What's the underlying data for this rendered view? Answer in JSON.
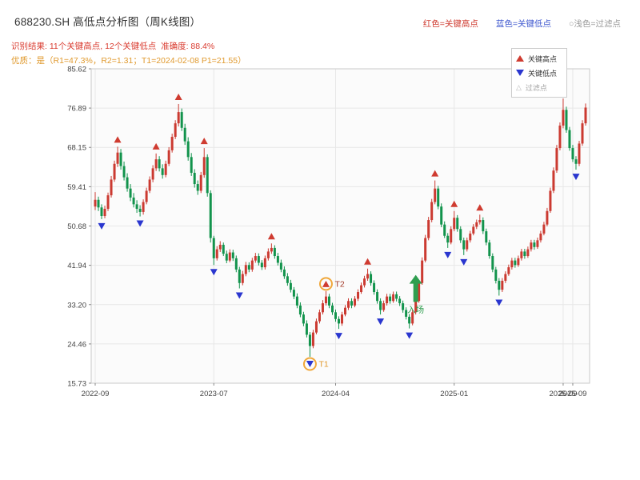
{
  "header": {
    "title": "688230.SH 高低点分析图（周K线图）",
    "legend_top": [
      {
        "label": "红色=关键高点",
        "color": "#cf3b30"
      },
      {
        "label": "蓝色=关键低点",
        "color": "#4059cf"
      },
      {
        "label": "○浅色=过滤点",
        "color": "#9a9a9a"
      }
    ],
    "result_line": "识别结果: 11个关键高点, 12个关键低点  准确度: 88.4%",
    "quality_line": "优质：是（R1=47.3%，R2=1.31；T1=2024-02-08 P1=21.55）"
  },
  "plot_legend": {
    "items": [
      {
        "marker": "triangle-up",
        "color": "#cf3b30",
        "label": "关键高点"
      },
      {
        "marker": "triangle-down",
        "color": "#2a36cf",
        "label": "关键低点"
      },
      {
        "marker": "triangle-outline",
        "color": "#b9b9b9",
        "label": "过滤点"
      }
    ]
  },
  "chart_data": {
    "type": "candlestick",
    "title": "688230.SH 高低点分析图（周K线图）",
    "ylim": [
      15.73,
      85.62
    ],
    "y_ticks": [
      85.62,
      76.89,
      68.15,
      59.41,
      50.68,
      41.94,
      33.2,
      24.46,
      15.73
    ],
    "x_ticks": [
      {
        "label": "2022-09",
        "index": 0
      },
      {
        "label": "2023-07",
        "index": 37
      },
      {
        "label": "2024-04",
        "index": 75
      },
      {
        "label": "2025-01",
        "index": 112
      },
      {
        "label": "2025-09",
        "index": 146
      },
      {
        "label": "2025-09",
        "index": 149
      }
    ],
    "up_color": "#cb3a31",
    "down_color": "#12934c",
    "key_high_color": "#cf3b30",
    "key_low_color": "#2a36cf",
    "grid": true,
    "candles": [
      [
        55.0,
        58.2,
        54.2,
        56.5
      ],
      [
        56.5,
        57.2,
        54.0,
        54.8
      ],
      [
        54.8,
        55.5,
        52.2,
        52.9
      ],
      [
        52.9,
        55.2,
        52.4,
        54.5
      ],
      [
        54.5,
        58.1,
        54.0,
        57.5
      ],
      [
        57.5,
        61.8,
        57.0,
        61.0
      ],
      [
        61.0,
        65.2,
        60.5,
        64.5
      ],
      [
        64.5,
        68.3,
        63.8,
        67.0
      ],
      [
        67.0,
        67.8,
        63.2,
        64.0
      ],
      [
        64.0,
        65.0,
        60.8,
        61.5
      ],
      [
        61.5,
        62.4,
        58.3,
        59.0
      ],
      [
        59.0,
        60.0,
        56.2,
        57.0
      ],
      [
        57.0,
        58.0,
        54.8,
        55.5
      ],
      [
        55.5,
        56.4,
        53.6,
        54.5
      ],
      [
        54.5,
        55.3,
        52.8,
        53.8
      ],
      [
        53.8,
        56.6,
        53.2,
        56.0
      ],
      [
        56.0,
        59.2,
        55.5,
        58.5
      ],
      [
        58.5,
        61.7,
        58.0,
        61.0
      ],
      [
        61.0,
        64.2,
        60.4,
        63.5
      ],
      [
        63.5,
        66.8,
        62.9,
        65.5
      ],
      [
        65.5,
        66.2,
        62.8,
        63.5
      ],
      [
        63.5,
        64.4,
        61.2,
        62.0
      ],
      [
        62.0,
        65.2,
        61.5,
        64.5
      ],
      [
        64.5,
        68.2,
        64.0,
        67.5
      ],
      [
        67.5,
        71.2,
        67.0,
        70.5
      ],
      [
        70.5,
        74.2,
        70.0,
        73.5
      ],
      [
        73.5,
        77.8,
        72.8,
        76.0
      ],
      [
        76.0,
        76.8,
        71.8,
        72.5
      ],
      [
        72.5,
        73.4,
        68.7,
        69.5
      ],
      [
        69.5,
        70.4,
        65.2,
        66.0
      ],
      [
        66.0,
        66.9,
        61.8,
        62.5
      ],
      [
        62.5,
        63.3,
        59.2,
        60.0
      ],
      [
        60.0,
        60.8,
        57.6,
        58.5
      ],
      [
        58.5,
        62.7,
        58.0,
        62.0
      ],
      [
        62.0,
        68.0,
        61.4,
        66.0
      ],
      [
        66.0,
        66.6,
        57.2,
        58.0
      ],
      [
        58.0,
        58.6,
        47.0,
        48.0
      ],
      [
        48.0,
        48.5,
        42.0,
        43.5
      ],
      [
        43.5,
        46.2,
        43.0,
        45.5
      ],
      [
        45.5,
        47.3,
        44.9,
        46.5
      ],
      [
        46.5,
        47.0,
        44.0,
        44.5
      ],
      [
        44.5,
        45.2,
        42.4,
        43.0
      ],
      [
        43.0,
        45.5,
        42.6,
        44.8
      ],
      [
        44.8,
        45.4,
        42.9,
        43.5
      ],
      [
        43.5,
        44.1,
        40.4,
        41.0
      ],
      [
        41.0,
        41.6,
        36.8,
        38.0
      ],
      [
        38.0,
        40.7,
        37.5,
        40.0
      ],
      [
        40.0,
        42.7,
        39.5,
        42.0
      ],
      [
        42.0,
        42.6,
        40.4,
        41.0
      ],
      [
        41.0,
        43.6,
        40.5,
        43.0
      ],
      [
        43.0,
        44.7,
        42.5,
        44.0
      ],
      [
        44.0,
        44.6,
        41.9,
        42.5
      ],
      [
        42.5,
        43.1,
        40.9,
        41.5
      ],
      [
        41.5,
        44.1,
        41.0,
        43.5
      ],
      [
        43.5,
        45.7,
        43.0,
        45.0
      ],
      [
        45.0,
        46.8,
        44.5,
        45.8
      ],
      [
        45.8,
        46.4,
        43.4,
        44.0
      ],
      [
        44.0,
        44.7,
        41.9,
        42.5
      ],
      [
        42.5,
        43.2,
        40.4,
        41.0
      ],
      [
        41.0,
        41.7,
        38.9,
        39.5
      ],
      [
        39.5,
        40.2,
        37.4,
        38.0
      ],
      [
        38.0,
        38.7,
        35.9,
        36.5
      ],
      [
        36.5,
        37.1,
        34.4,
        35.0
      ],
      [
        35.0,
        35.7,
        32.4,
        33.0
      ],
      [
        33.0,
        33.7,
        30.4,
        31.0
      ],
      [
        31.0,
        31.6,
        28.4,
        29.0
      ],
      [
        29.0,
        29.7,
        25.9,
        26.5
      ],
      [
        26.5,
        27.1,
        21.6,
        24.0
      ],
      [
        24.0,
        27.6,
        23.5,
        27.0
      ],
      [
        27.0,
        30.1,
        26.6,
        29.5
      ],
      [
        29.5,
        32.1,
        29.0,
        31.5
      ],
      [
        31.5,
        34.2,
        31.0,
        33.5
      ],
      [
        33.5,
        36.2,
        33.0,
        35.0
      ],
      [
        35.0,
        35.6,
        32.4,
        33.0
      ],
      [
        33.0,
        33.6,
        30.9,
        31.5
      ],
      [
        31.5,
        32.1,
        29.4,
        30.0
      ],
      [
        30.0,
        30.6,
        27.8,
        29.0
      ],
      [
        29.0,
        31.6,
        28.5,
        31.0
      ],
      [
        31.0,
        33.1,
        30.6,
        32.5
      ],
      [
        32.5,
        34.6,
        32.0,
        34.0
      ],
      [
        34.0,
        34.6,
        32.4,
        33.0
      ],
      [
        33.0,
        35.1,
        32.6,
        34.5
      ],
      [
        34.5,
        36.6,
        34.0,
        36.0
      ],
      [
        36.0,
        38.1,
        35.6,
        37.5
      ],
      [
        37.5,
        39.6,
        37.0,
        39.0
      ],
      [
        39.0,
        41.2,
        38.5,
        40.0
      ],
      [
        40.0,
        40.6,
        37.4,
        38.0
      ],
      [
        38.0,
        38.6,
        35.4,
        36.0
      ],
      [
        36.0,
        36.6,
        33.4,
        34.0
      ],
      [
        34.0,
        34.6,
        31.0,
        32.0
      ],
      [
        32.0,
        34.1,
        31.6,
        33.5
      ],
      [
        33.5,
        35.6,
        33.0,
        35.0
      ],
      [
        35.0,
        35.6,
        33.4,
        34.0
      ],
      [
        34.0,
        36.1,
        33.6,
        35.5
      ],
      [
        35.5,
        36.1,
        33.9,
        34.5
      ],
      [
        34.5,
        35.1,
        32.9,
        33.5
      ],
      [
        33.5,
        34.1,
        31.4,
        32.0
      ],
      [
        32.0,
        32.6,
        29.9,
        30.5
      ],
      [
        30.5,
        31.1,
        27.9,
        29.0
      ],
      [
        29.0,
        32.1,
        28.6,
        31.5
      ],
      [
        31.5,
        34.6,
        31.0,
        34.0
      ],
      [
        34.0,
        38.6,
        33.6,
        38.0
      ],
      [
        38.0,
        43.7,
        37.6,
        43.0
      ],
      [
        43.0,
        48.7,
        42.6,
        48.0
      ],
      [
        48.0,
        52.7,
        47.5,
        52.0
      ],
      [
        52.0,
        56.7,
        51.5,
        56.0
      ],
      [
        56.0,
        60.8,
        55.5,
        59.0
      ],
      [
        59.0,
        59.6,
        54.4,
        55.0
      ],
      [
        55.0,
        55.7,
        50.4,
        51.0
      ],
      [
        51.0,
        51.7,
        48.0,
        48.5
      ],
      [
        48.5,
        49.1,
        45.8,
        47.0
      ],
      [
        47.0,
        50.6,
        46.6,
        50.0
      ],
      [
        50.0,
        54.0,
        49.5,
        52.5
      ],
      [
        52.5,
        53.1,
        49.4,
        50.0
      ],
      [
        50.0,
        50.6,
        46.9,
        47.5
      ],
      [
        47.5,
        48.1,
        44.2,
        45.5
      ],
      [
        45.5,
        48.1,
        45.0,
        47.5
      ],
      [
        47.5,
        49.6,
        47.0,
        49.0
      ],
      [
        49.0,
        51.1,
        48.6,
        50.5
      ],
      [
        50.5,
        52.1,
        50.0,
        51.5
      ],
      [
        51.5,
        53.2,
        51.0,
        52.0
      ],
      [
        52.0,
        52.6,
        48.9,
        49.5
      ],
      [
        49.5,
        50.1,
        46.4,
        47.0
      ],
      [
        47.0,
        47.6,
        43.4,
        44.0
      ],
      [
        44.0,
        44.6,
        40.4,
        41.0
      ],
      [
        41.0,
        41.6,
        37.9,
        38.5
      ],
      [
        38.5,
        39.1,
        35.2,
        36.5
      ],
      [
        36.5,
        39.1,
        36.0,
        38.5
      ],
      [
        38.5,
        40.6,
        38.0,
        40.0
      ],
      [
        40.0,
        42.1,
        39.6,
        41.5
      ],
      [
        41.5,
        43.6,
        41.0,
        43.0
      ],
      [
        43.0,
        43.6,
        41.4,
        42.0
      ],
      [
        42.0,
        44.1,
        41.6,
        43.5
      ],
      [
        43.5,
        45.6,
        43.0,
        45.0
      ],
      [
        45.0,
        45.6,
        43.4,
        44.0
      ],
      [
        44.0,
        46.1,
        43.6,
        45.5
      ],
      [
        45.5,
        47.6,
        45.0,
        47.0
      ],
      [
        47.0,
        47.6,
        45.4,
        46.0
      ],
      [
        46.0,
        48.1,
        45.6,
        47.5
      ],
      [
        47.5,
        49.6,
        47.0,
        49.0
      ],
      [
        49.0,
        51.6,
        48.6,
        51.0
      ],
      [
        51.0,
        54.7,
        50.6,
        54.0
      ],
      [
        54.0,
        59.2,
        53.6,
        58.5
      ],
      [
        58.5,
        63.7,
        58.0,
        63.0
      ],
      [
        63.0,
        68.7,
        62.5,
        68.0
      ],
      [
        68.0,
        73.7,
        67.5,
        73.0
      ],
      [
        73.0,
        79.0,
        72.4,
        76.5
      ],
      [
        76.5,
        77.2,
        71.4,
        72.0
      ],
      [
        72.0,
        72.7,
        67.4,
        68.0
      ],
      [
        68.0,
        68.7,
        64.9,
        65.5
      ],
      [
        65.5,
        66.2,
        63.2,
        64.5
      ],
      [
        64.5,
        69.6,
        64.0,
        69.0
      ],
      [
        69.0,
        74.2,
        68.5,
        73.5
      ],
      [
        73.5,
        77.9,
        73.0,
        77.0
      ]
    ],
    "key_highs": [
      7,
      19,
      26,
      34,
      55,
      72,
      85,
      106,
      112,
      120,
      146
    ],
    "key_lows": [
      2,
      14,
      37,
      45,
      67,
      76,
      89,
      98,
      110,
      115,
      126,
      150
    ],
    "annotations": [
      {
        "type": "circle",
        "index": 67,
        "anchor": "low",
        "label": "T1",
        "label_color": "#e09a2f",
        "circle_color": "#f0a73a"
      },
      {
        "type": "circle",
        "index": 72,
        "anchor": "high",
        "label": "T2",
        "label_color": "#a33b2a",
        "circle_color": "#f0a73a"
      },
      {
        "type": "entry_arrow",
        "index": 100,
        "tip_price": 39.8,
        "base_price": 33.8,
        "label": "入场",
        "color": "#2f9e4f"
      }
    ]
  }
}
